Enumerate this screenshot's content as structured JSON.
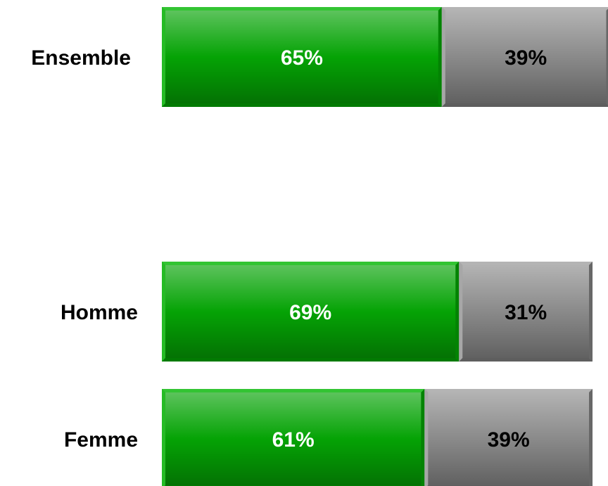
{
  "chart_data": {
    "type": "bar",
    "orientation": "horizontal",
    "stacked": true,
    "categories": [
      "Ensemble",
      "Homme",
      "Femme"
    ],
    "series": [
      {
        "values": [
          65,
          69,
          61
        ],
        "labels": [
          "65%",
          "69%",
          "61%"
        ]
      },
      {
        "values": [
          39,
          31,
          39
        ],
        "labels": [
          "39%",
          "31%",
          "39%"
        ]
      }
    ],
    "xlim": [
      0,
      100
    ],
    "grid": false,
    "legend": "none"
  },
  "colors": {
    "series_0": "#05a305",
    "series_0_light": "#33c433",
    "series_0_dark": "#027a02",
    "series_1": "#8a8a8a",
    "series_1_light": "#b4b4b4",
    "series_1_dark": "#5e5e5e",
    "label_series_0": "#ffffff",
    "label_series_1": "#000000"
  }
}
